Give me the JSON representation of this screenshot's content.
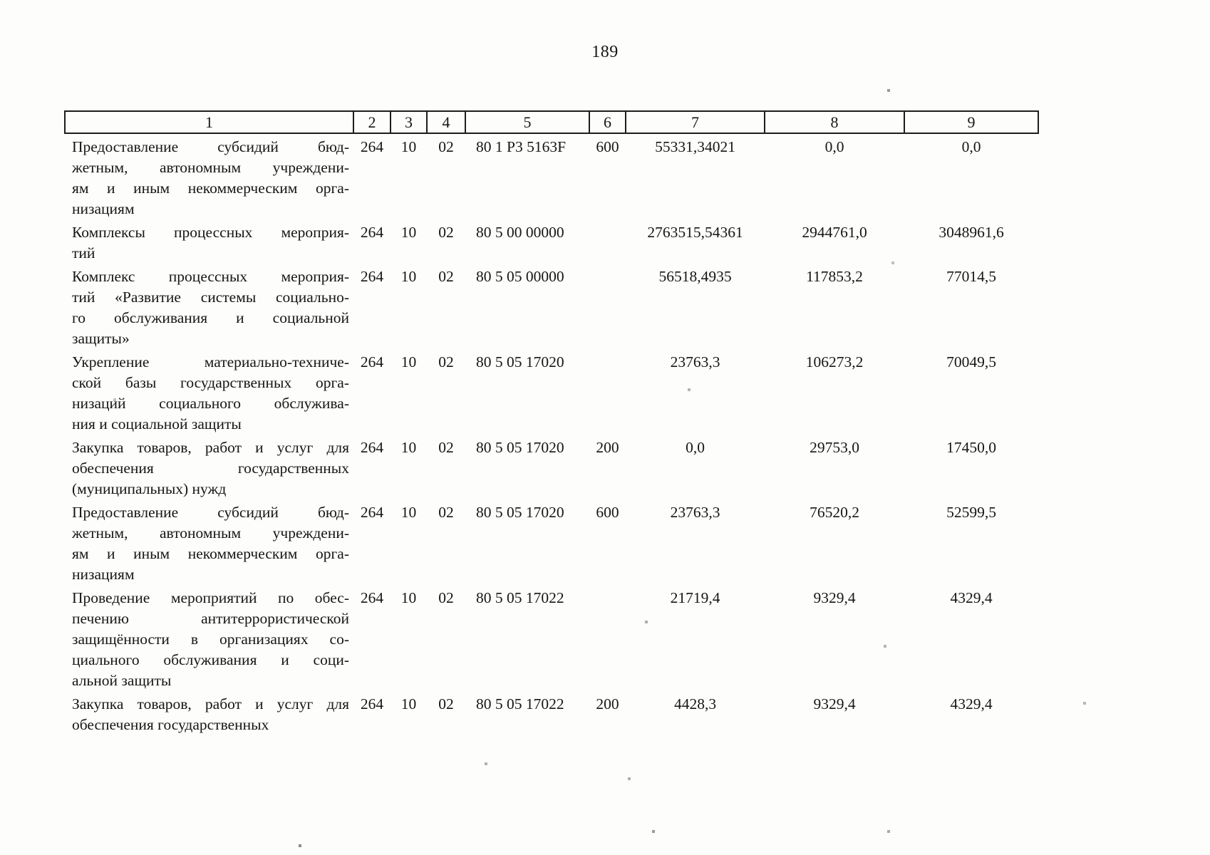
{
  "page": {
    "number": "189"
  },
  "table": {
    "header": [
      "1",
      "2",
      "3",
      "4",
      "5",
      "6",
      "7",
      "8",
      "9"
    ],
    "rows": [
      {
        "name_lines": [
          "Предоставление субсидий бюд-",
          "жетным, автономным учреждени-",
          "ям и иным некоммерческим орга-",
          "низациям"
        ],
        "col2": "264",
        "col3": "10",
        "col4": "02",
        "col5": "80 1 P3 5163F",
        "col6": "600",
        "col7": "55331,34021",
        "col8": "0,0",
        "col9": "0,0"
      },
      {
        "name_lines": [
          "Комплексы процессных мероприя-",
          "тий"
        ],
        "col2": "264",
        "col3": "10",
        "col4": "02",
        "col5": "80 5 00 00000",
        "col6": "",
        "col7": "2763515,54361",
        "col8": "2944761,0",
        "col9": "3048961,6"
      },
      {
        "name_lines": [
          "Комплекс процессных мероприя-",
          "тий «Развитие системы социально-",
          "го обслуживания и социальной",
          "защиты»"
        ],
        "col2": "264",
        "col3": "10",
        "col4": "02",
        "col5": "80 5 05 00000",
        "col6": "",
        "col7": "56518,4935",
        "col8": "117853,2",
        "col9": "77014,5"
      },
      {
        "name_lines": [
          "Укрепление материально-техниче-",
          "ской базы государственных орга-",
          "низаций социального обслужива-",
          "ния и социальной защиты"
        ],
        "col2": "264",
        "col3": "10",
        "col4": "02",
        "col5": "80 5 05 17020",
        "col6": "",
        "col7": "23763,3",
        "col8": "106273,2",
        "col9": "70049,5"
      },
      {
        "name_lines": [
          "Закупка товаров, работ и услуг для",
          "обеспечения государственных",
          "(муниципальных) нужд"
        ],
        "col2": "264",
        "col3": "10",
        "col4": "02",
        "col5": "80 5 05 17020",
        "col6": "200",
        "col7": "0,0",
        "col8": "29753,0",
        "col9": "17450,0"
      },
      {
        "name_lines": [
          "Предоставление субсидий бюд-",
          "жетным, автономным учреждени-",
          "ям и иным некоммерческим орга-",
          "низациям"
        ],
        "col2": "264",
        "col3": "10",
        "col4": "02",
        "col5": "80 5 05 17020",
        "col6": "600",
        "col7": "23763,3",
        "col8": "76520,2",
        "col9": "52599,5"
      },
      {
        "name_lines": [
          "Проведение мероприятий по обес-",
          "печению антитеррористической",
          "защищённости в организациях со-",
          "циального обслуживания и соци-",
          "альной защиты"
        ],
        "col2": "264",
        "col3": "10",
        "col4": "02",
        "col5": "80 5 05 17022",
        "col6": "",
        "col7": "21719,4",
        "col8": "9329,4",
        "col9": "4329,4"
      },
      {
        "name_lines": [
          "Закупка товаров, работ и услуг для",
          "обеспечения государственных"
        ],
        "col2": "264",
        "col3": "10",
        "col4": "02",
        "col5": "80 5 05 17022",
        "col6": "200",
        "col7": "4428,3",
        "col8": "9329,4",
        "col9": "4329,4"
      }
    ]
  }
}
